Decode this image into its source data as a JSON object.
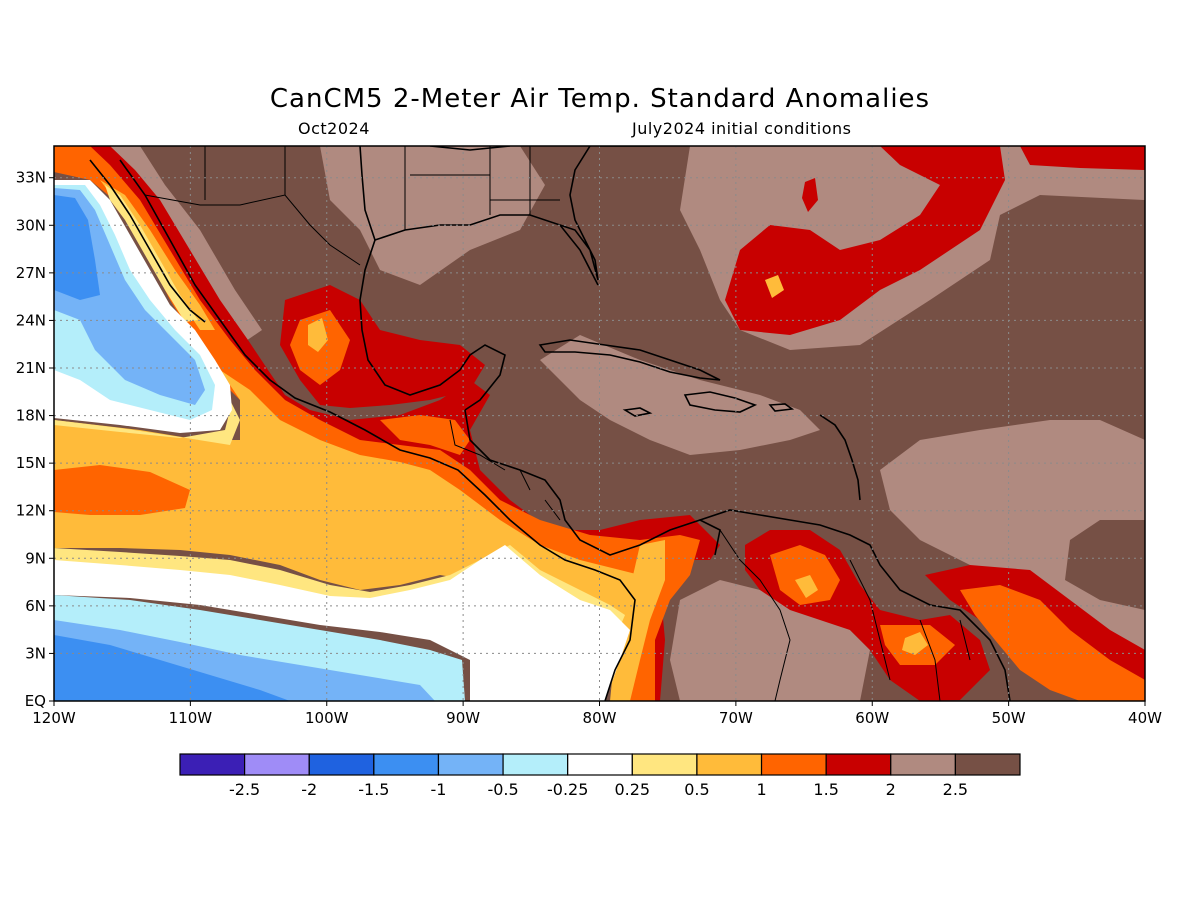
{
  "title": "CanCM5 2-Meter Air Temp. Standard Anomalies",
  "subtitle_left": "Oct2024",
  "subtitle_right": "July2024 initial conditions",
  "map": {
    "lon_range": [
      -120,
      -40
    ],
    "lat_range": [
      0,
      35
    ],
    "lat_ticks": [
      {
        "v": 33,
        "label": "33N"
      },
      {
        "v": 30,
        "label": "30N"
      },
      {
        "v": 27,
        "label": "27N"
      },
      {
        "v": 24,
        "label": "24N"
      },
      {
        "v": 21,
        "label": "21N"
      },
      {
        "v": 18,
        "label": "18N"
      },
      {
        "v": 15,
        "label": "15N"
      },
      {
        "v": 12,
        "label": "12N"
      },
      {
        "v": 9,
        "label": "9N"
      },
      {
        "v": 6,
        "label": "6N"
      },
      {
        "v": 3,
        "label": "3N"
      },
      {
        "v": 0,
        "label": "EQ"
      }
    ],
    "lon_ticks": [
      {
        "v": -120,
        "label": "120W"
      },
      {
        "v": -110,
        "label": "110W"
      },
      {
        "v": -100,
        "label": "100W"
      },
      {
        "v": -90,
        "label": "90W"
      },
      {
        "v": -80,
        "label": "80W"
      },
      {
        "v": -70,
        "label": "70W"
      },
      {
        "v": -60,
        "label": "60W"
      },
      {
        "v": -50,
        "label": "50W"
      },
      {
        "v": -40,
        "label": "40W"
      }
    ],
    "grid": "dotted"
  },
  "colorbar": {
    "colors": [
      "#3b1fb5",
      "#9f8cf7",
      "#1f62e0",
      "#3c8ff2",
      "#74b3f7",
      "#b4eefa",
      "#ffffff",
      "#ffe680",
      "#ffbb3a",
      "#ff6400",
      "#c80000",
      "#b08a80",
      "#765045"
    ],
    "labels": [
      "-2.5",
      "-2",
      "-1.5",
      "-1",
      "-0.5",
      "-0.25",
      "0.25",
      "0.5",
      "1",
      "1.5",
      "2",
      "2.5"
    ]
  },
  "colors": {
    "very_high": "#765045",
    "high": "#b08a80",
    "red": "#c80000",
    "orange": "#ff6400",
    "gold": "#ffbb3a",
    "yellow": "#ffe680",
    "white": "#ffffff",
    "light_cyan": "#b4eefa",
    "light_blue": "#74b3f7",
    "blue": "#3c8ff2"
  }
}
